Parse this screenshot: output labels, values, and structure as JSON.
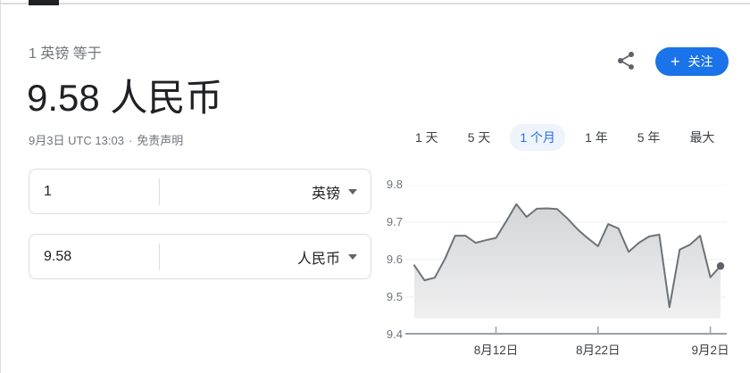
{
  "header": {
    "subtitle": "1 英镑 等于",
    "rate_display": "9.58 人民币",
    "timestamp": "9月3日 UTC 13:03",
    "separator": "·",
    "disclaimer_label": "免责声明",
    "follow_plus": "+",
    "follow_label": "关注"
  },
  "converter": {
    "from": {
      "value": "1",
      "currency": "英镑"
    },
    "to": {
      "value": "9.58",
      "currency": "人民币"
    }
  },
  "range_tabs": [
    {
      "label": "1 天",
      "selected": false
    },
    {
      "label": "5 天",
      "selected": false
    },
    {
      "label": "1 个月",
      "selected": true
    },
    {
      "label": "1 年",
      "selected": false
    },
    {
      "label": "5 年",
      "selected": false
    },
    {
      "label": "最大",
      "selected": false
    }
  ],
  "colors": {
    "accent_blue": "#1a73e8",
    "selected_tab_bg": "#eff3fb",
    "line": "#6e7377",
    "dot": "#5f6368",
    "fill_top": "#d4d5d7",
    "fill_bottom": "#f0f0f1",
    "grid": "#ececec",
    "axis": "#9aa0a6",
    "text_gray": "#70757a"
  },
  "chart_data": {
    "type": "area",
    "x": [
      "8月4日",
      "8月5日",
      "8月6日",
      "8月7日",
      "8月8日",
      "8月9日",
      "8月10日",
      "8月11日",
      "8月12日",
      "8月13日",
      "8月14日",
      "8月15日",
      "8月16日",
      "8月17日",
      "8月18日",
      "8月19日",
      "8月20日",
      "8月21日",
      "8月22日",
      "8月23日",
      "8月24日",
      "8月25日",
      "8月26日",
      "8月27日",
      "8月28日",
      "8月29日",
      "8月30日",
      "8月31日",
      "9月1日",
      "9月2日",
      "9月3日"
    ],
    "values": [
      9.585,
      9.545,
      9.552,
      9.602,
      9.664,
      9.664,
      9.645,
      9.652,
      9.658,
      9.702,
      9.748,
      9.714,
      9.736,
      9.737,
      9.735,
      9.71,
      9.681,
      9.657,
      9.636,
      9.695,
      9.683,
      9.621,
      9.645,
      9.662,
      9.667,
      9.473,
      9.627,
      9.64,
      9.664,
      9.553,
      9.583
    ],
    "ylabel": "",
    "xlabel": "",
    "ylim": [
      9.4,
      9.8
    ],
    "yticks": [
      9.8,
      9.7,
      9.6,
      9.5,
      9.4
    ],
    "xticks": [
      {
        "label": "8月12日",
        "index": 8
      },
      {
        "label": "8月22日",
        "index": 18
      },
      {
        "label": "9月2日",
        "index": 29
      }
    ],
    "fill_floor": 9.443,
    "grid": true,
    "legend": false,
    "last_point_marker": true
  }
}
